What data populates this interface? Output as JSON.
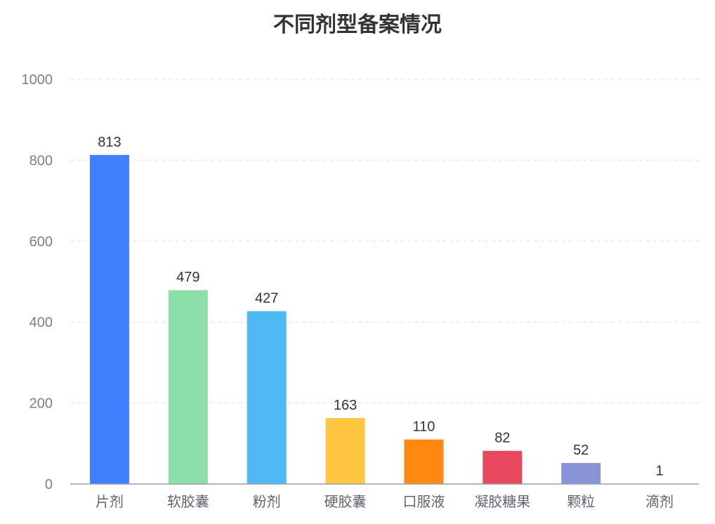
{
  "chart_data": {
    "type": "bar",
    "title": "不同剂型备案情况",
    "categories": [
      "片剂",
      "软胶囊",
      "粉剂",
      "硬胶囊",
      "口服液",
      "凝胶糖果",
      "颗粒",
      "滴剂"
    ],
    "values": [
      813,
      479,
      427,
      163,
      110,
      82,
      52,
      1
    ],
    "colors": [
      "#4080ff",
      "#8ddfa9",
      "#4fb9f6",
      "#ffc642",
      "#ff8811",
      "#e9495e",
      "#8993d8",
      "#c8cde0"
    ],
    "ylim": [
      0,
      1000
    ],
    "yticks": [
      0,
      200,
      400,
      600,
      800,
      1000
    ],
    "grid": true,
    "xlabel": "",
    "ylabel": ""
  }
}
